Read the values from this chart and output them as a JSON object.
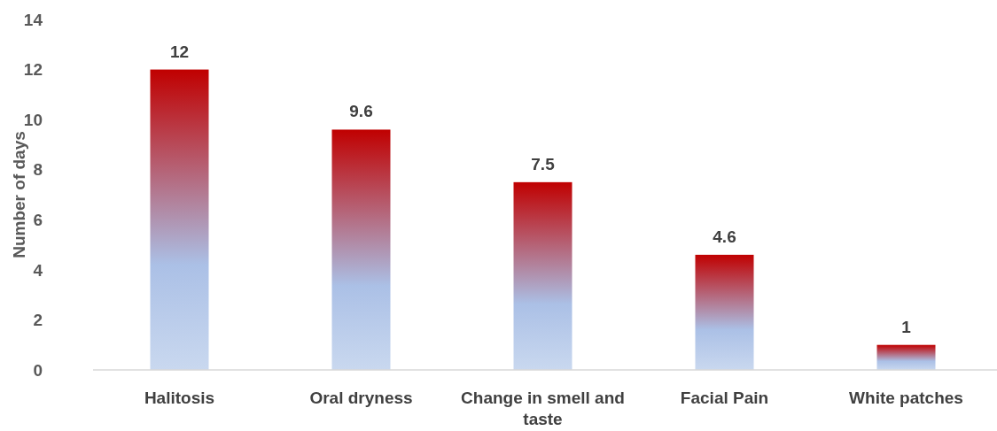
{
  "chart_data": {
    "type": "bar",
    "ylabel": "Number of days",
    "categories": [
      "Halitosis",
      "Oral dryness",
      "Change in smell and taste",
      "Facial Pain",
      "White patches"
    ],
    "values": [
      12,
      9.6,
      7.5,
      4.6,
      1
    ],
    "color": "#c00000",
    "ylim": [
      0,
      14
    ],
    "yticks": [
      0,
      2,
      4,
      6,
      8,
      10,
      12,
      14
    ],
    "grid": false,
    "data_labels": true
  }
}
